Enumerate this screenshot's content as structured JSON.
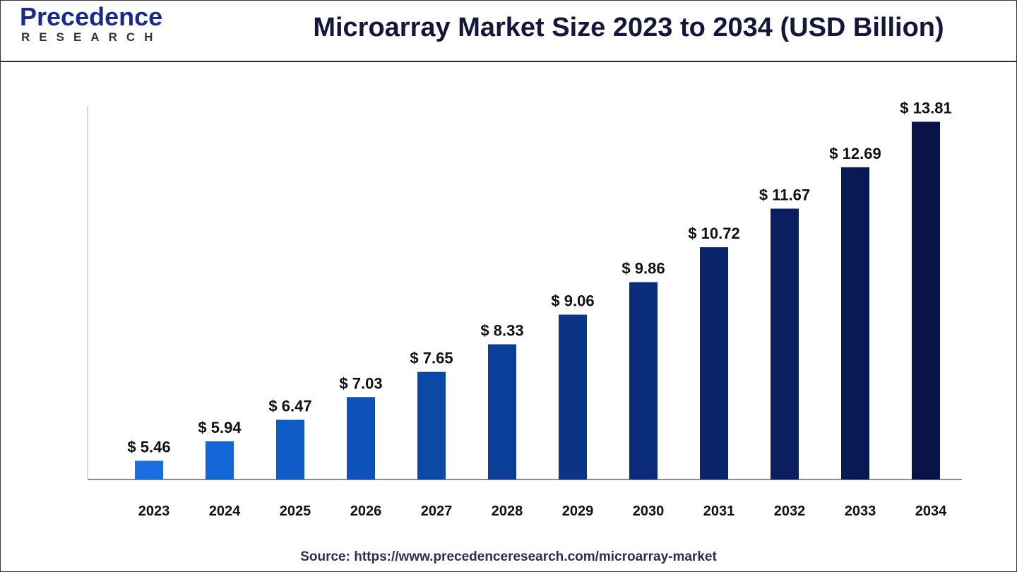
{
  "header": {
    "logo_main": "Precedence",
    "logo_sub": "RESEARCH",
    "title": "Microarray Market Size 2023 to 2034 (USD Billion)"
  },
  "source": "Source: https://www.precedenceresearch.com/microarray-market",
  "chart_data": {
    "type": "bar",
    "title": "Microarray Market Size 2023 to 2034 (USD Billion)",
    "xlabel": "",
    "ylabel": "",
    "categories": [
      "2023",
      "2024",
      "2025",
      "2026",
      "2027",
      "2028",
      "2029",
      "2030",
      "2031",
      "2032",
      "2033",
      "2034"
    ],
    "values": [
      5.46,
      5.94,
      6.47,
      7.03,
      7.65,
      8.33,
      9.06,
      9.86,
      10.72,
      11.67,
      12.69,
      13.81
    ],
    "data_labels": [
      "$ 5.46",
      "$ 5.94",
      "$ 6.47",
      "$ 7.03",
      "$ 7.65",
      "$ 8.33",
      "$ 9.06",
      "$ 9.86",
      "$ 10.72",
      "$ 11.67",
      "$ 12.69",
      "$ 13.81"
    ],
    "ylim": [
      5,
      14.2
    ],
    "grid": false,
    "colors": [
      "#1a6ee0",
      "#1366d8",
      "#0f5cc8",
      "#0d52b8",
      "#0c48a8",
      "#0b3e98",
      "#0b3488",
      "#0a2c7a",
      "#0a246c",
      "#0a1e60",
      "#0a1854",
      "#0a124a"
    ]
  }
}
